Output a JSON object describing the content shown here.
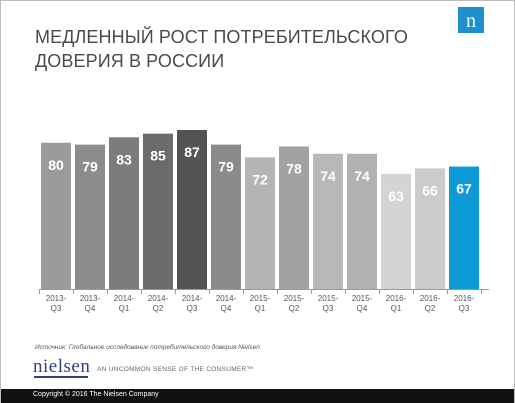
{
  "header": {
    "title": "МЕДЛЕННЫЙ РОСТ ПОТРЕБИТЕЛЬСКОГО ДОВЕРИЯ В РОССИИ",
    "logo_letter": "n"
  },
  "chart_data": {
    "type": "bar",
    "title": "МЕДЛЕННЫЙ РОСТ ПОТРЕБИТЕЛЬСКОГО ДОВЕРИЯ В РОССИИ",
    "categories": [
      "2013-Q3",
      "2013-Q4",
      "2014-Q1",
      "2014-Q2",
      "2014-Q3",
      "2014-Q4",
      "2015-Q1",
      "2015-Q2",
      "2015-Q3",
      "2015-Q4",
      "2016-Q1",
      "2016-Q2",
      "2016-Q3"
    ],
    "category_lines": [
      [
        "2013-",
        "Q3"
      ],
      [
        "2013-",
        "Q4"
      ],
      [
        "2014-",
        "Q1"
      ],
      [
        "2014-",
        "Q2"
      ],
      [
        "2014-",
        "Q3"
      ],
      [
        "2014-",
        "Q4"
      ],
      [
        "2015-",
        "Q1"
      ],
      [
        "2015-",
        "Q2"
      ],
      [
        "2015-",
        "Q3"
      ],
      [
        "2015-",
        "Q4"
      ],
      [
        "2016-",
        "Q1"
      ],
      [
        "2016-",
        "Q2"
      ],
      [
        "2016-",
        "Q3"
      ]
    ],
    "values": [
      80,
      79,
      83,
      85,
      87,
      79,
      72,
      78,
      74,
      74,
      63,
      66,
      67
    ],
    "bar_colors": [
      "#9b9b9b",
      "#8c8c8c",
      "#7c7c7c",
      "#6b6b6b",
      "#545454",
      "#8a8a8a",
      "#b4b4b4",
      "#a2a2a2",
      "#b8b8b8",
      "#b1b1b1",
      "#d4d4d4",
      "#cbcbcb",
      "#0d9bd8"
    ],
    "xlabel": "",
    "ylabel": "",
    "ylim": [
      0,
      87
    ],
    "grid": false,
    "legend": "none"
  },
  "footer": {
    "source": "Источник: Глобальное исследование потребительского доверия Nielsen",
    "brand": "nielsen",
    "tagline": "AN UNCOMMON SENSE OF THE CONSUMER™",
    "copyright": "Copyright © 2016 The Nielsen Company"
  }
}
